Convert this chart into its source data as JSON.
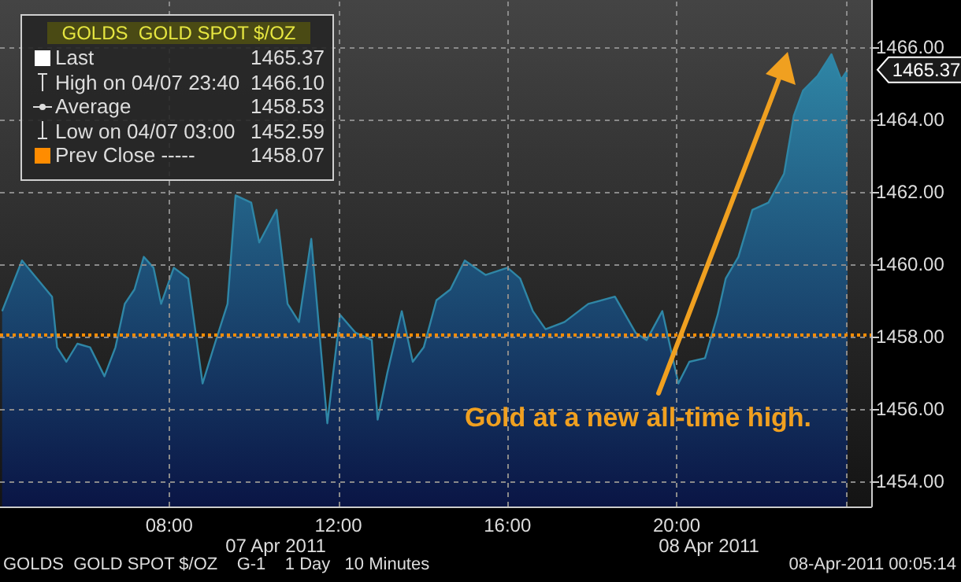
{
  "chart_data": {
    "type": "area",
    "title": "GOLDS  GOLD SPOT $/OZ",
    "x": [
      4.05,
      4.52,
      5.23,
      5.35,
      5.57,
      5.83,
      6.13,
      6.47,
      6.73,
      6.95,
      7.18,
      7.4,
      7.63,
      7.81,
      8.11,
      8.45,
      8.79,
      9.08,
      9.38,
      9.57,
      9.94,
      10.13,
      10.54,
      10.8,
      11.07,
      11.36,
      11.74,
      12.04,
      12.41,
      12.79,
      12.93,
      13.16,
      13.5,
      13.76,
      14.02,
      14.32,
      14.65,
      14.99,
      15.48,
      16.0,
      16.3,
      16.6,
      16.9,
      17.35,
      17.91,
      18.54,
      19.03,
      19.29,
      19.66,
      20.04,
      20.3,
      20.67,
      20.97,
      21.16,
      21.46,
      21.79,
      22.17,
      22.54,
      22.77,
      22.99,
      23.33,
      23.66,
      23.89,
      24.04
    ],
    "series": [
      {
        "color": "#2f86a6",
        "values": [
          1458.7,
          1460.1,
          1459.1,
          1457.7,
          1457.3,
          1457.8,
          1457.7,
          1456.9,
          1457.7,
          1458.9,
          1459.3,
          1460.2,
          1459.9,
          1458.9,
          1459.9,
          1459.6,
          1456.7,
          1457.8,
          1458.9,
          1461.9,
          1461.7,
          1460.6,
          1461.5,
          1458.9,
          1458.4,
          1460.7,
          1455.6,
          1458.6,
          1458.1,
          1457.9,
          1455.7,
          1457.0,
          1458.7,
          1457.3,
          1457.7,
          1459.0,
          1459.3,
          1460.1,
          1459.7,
          1459.9,
          1459.6,
          1458.7,
          1458.2,
          1458.4,
          1458.9,
          1459.1,
          1458.1,
          1457.9,
          1458.7,
          1456.7,
          1457.3,
          1457.4,
          1458.6,
          1459.6,
          1460.2,
          1461.5,
          1461.7,
          1462.5,
          1464.1,
          1464.8,
          1465.2,
          1465.8,
          1465.1,
          1465.37
        ]
      }
    ],
    "xlim": [
      4,
      24.6
    ],
    "xticks": [
      {
        "value": 8,
        "label": "08:00"
      },
      {
        "value": 12,
        "label": "12:00"
      },
      {
        "value": 16,
        "label": "16:00"
      },
      {
        "value": 20,
        "label": "20:00"
      },
      {
        "value": 24,
        "label": null
      }
    ],
    "ylim": [
      1453.3,
      1467.3
    ],
    "yticks": [
      {
        "value": 1454,
        "label": "1454.00"
      },
      {
        "value": 1456,
        "label": "1456.00"
      },
      {
        "value": 1458,
        "label": "1458.00"
      },
      {
        "value": 1460,
        "label": "1460.00"
      },
      {
        "value": 1462,
        "label": "1462.00"
      },
      {
        "value": 1464,
        "label": "1464.00"
      },
      {
        "value": 1466,
        "label": "1466.00"
      }
    ],
    "grid": true,
    "marker": "none",
    "ref_lines": [
      {
        "axis": "y",
        "value": 1458.07,
        "color": "#ff8c00",
        "line_style": "dotted"
      }
    ],
    "annotations": [
      "Last",
      "1465.37",
      "High on 04/07 23:40",
      "1466.10",
      "Average",
      "1458.53",
      "Low on 04/07 03:00",
      "1452.59",
      "Prev Close -----",
      "1458.07",
      "Gold at a new all-time high.",
      "07 Apr 2011",
      "08 Apr 2011",
      "1465.37",
      "GOLDS  GOLD SPOT $/OZ    G-1    1 Day   10 Minutes",
      "08-Apr-2011 00:05:14"
    ]
  }
}
